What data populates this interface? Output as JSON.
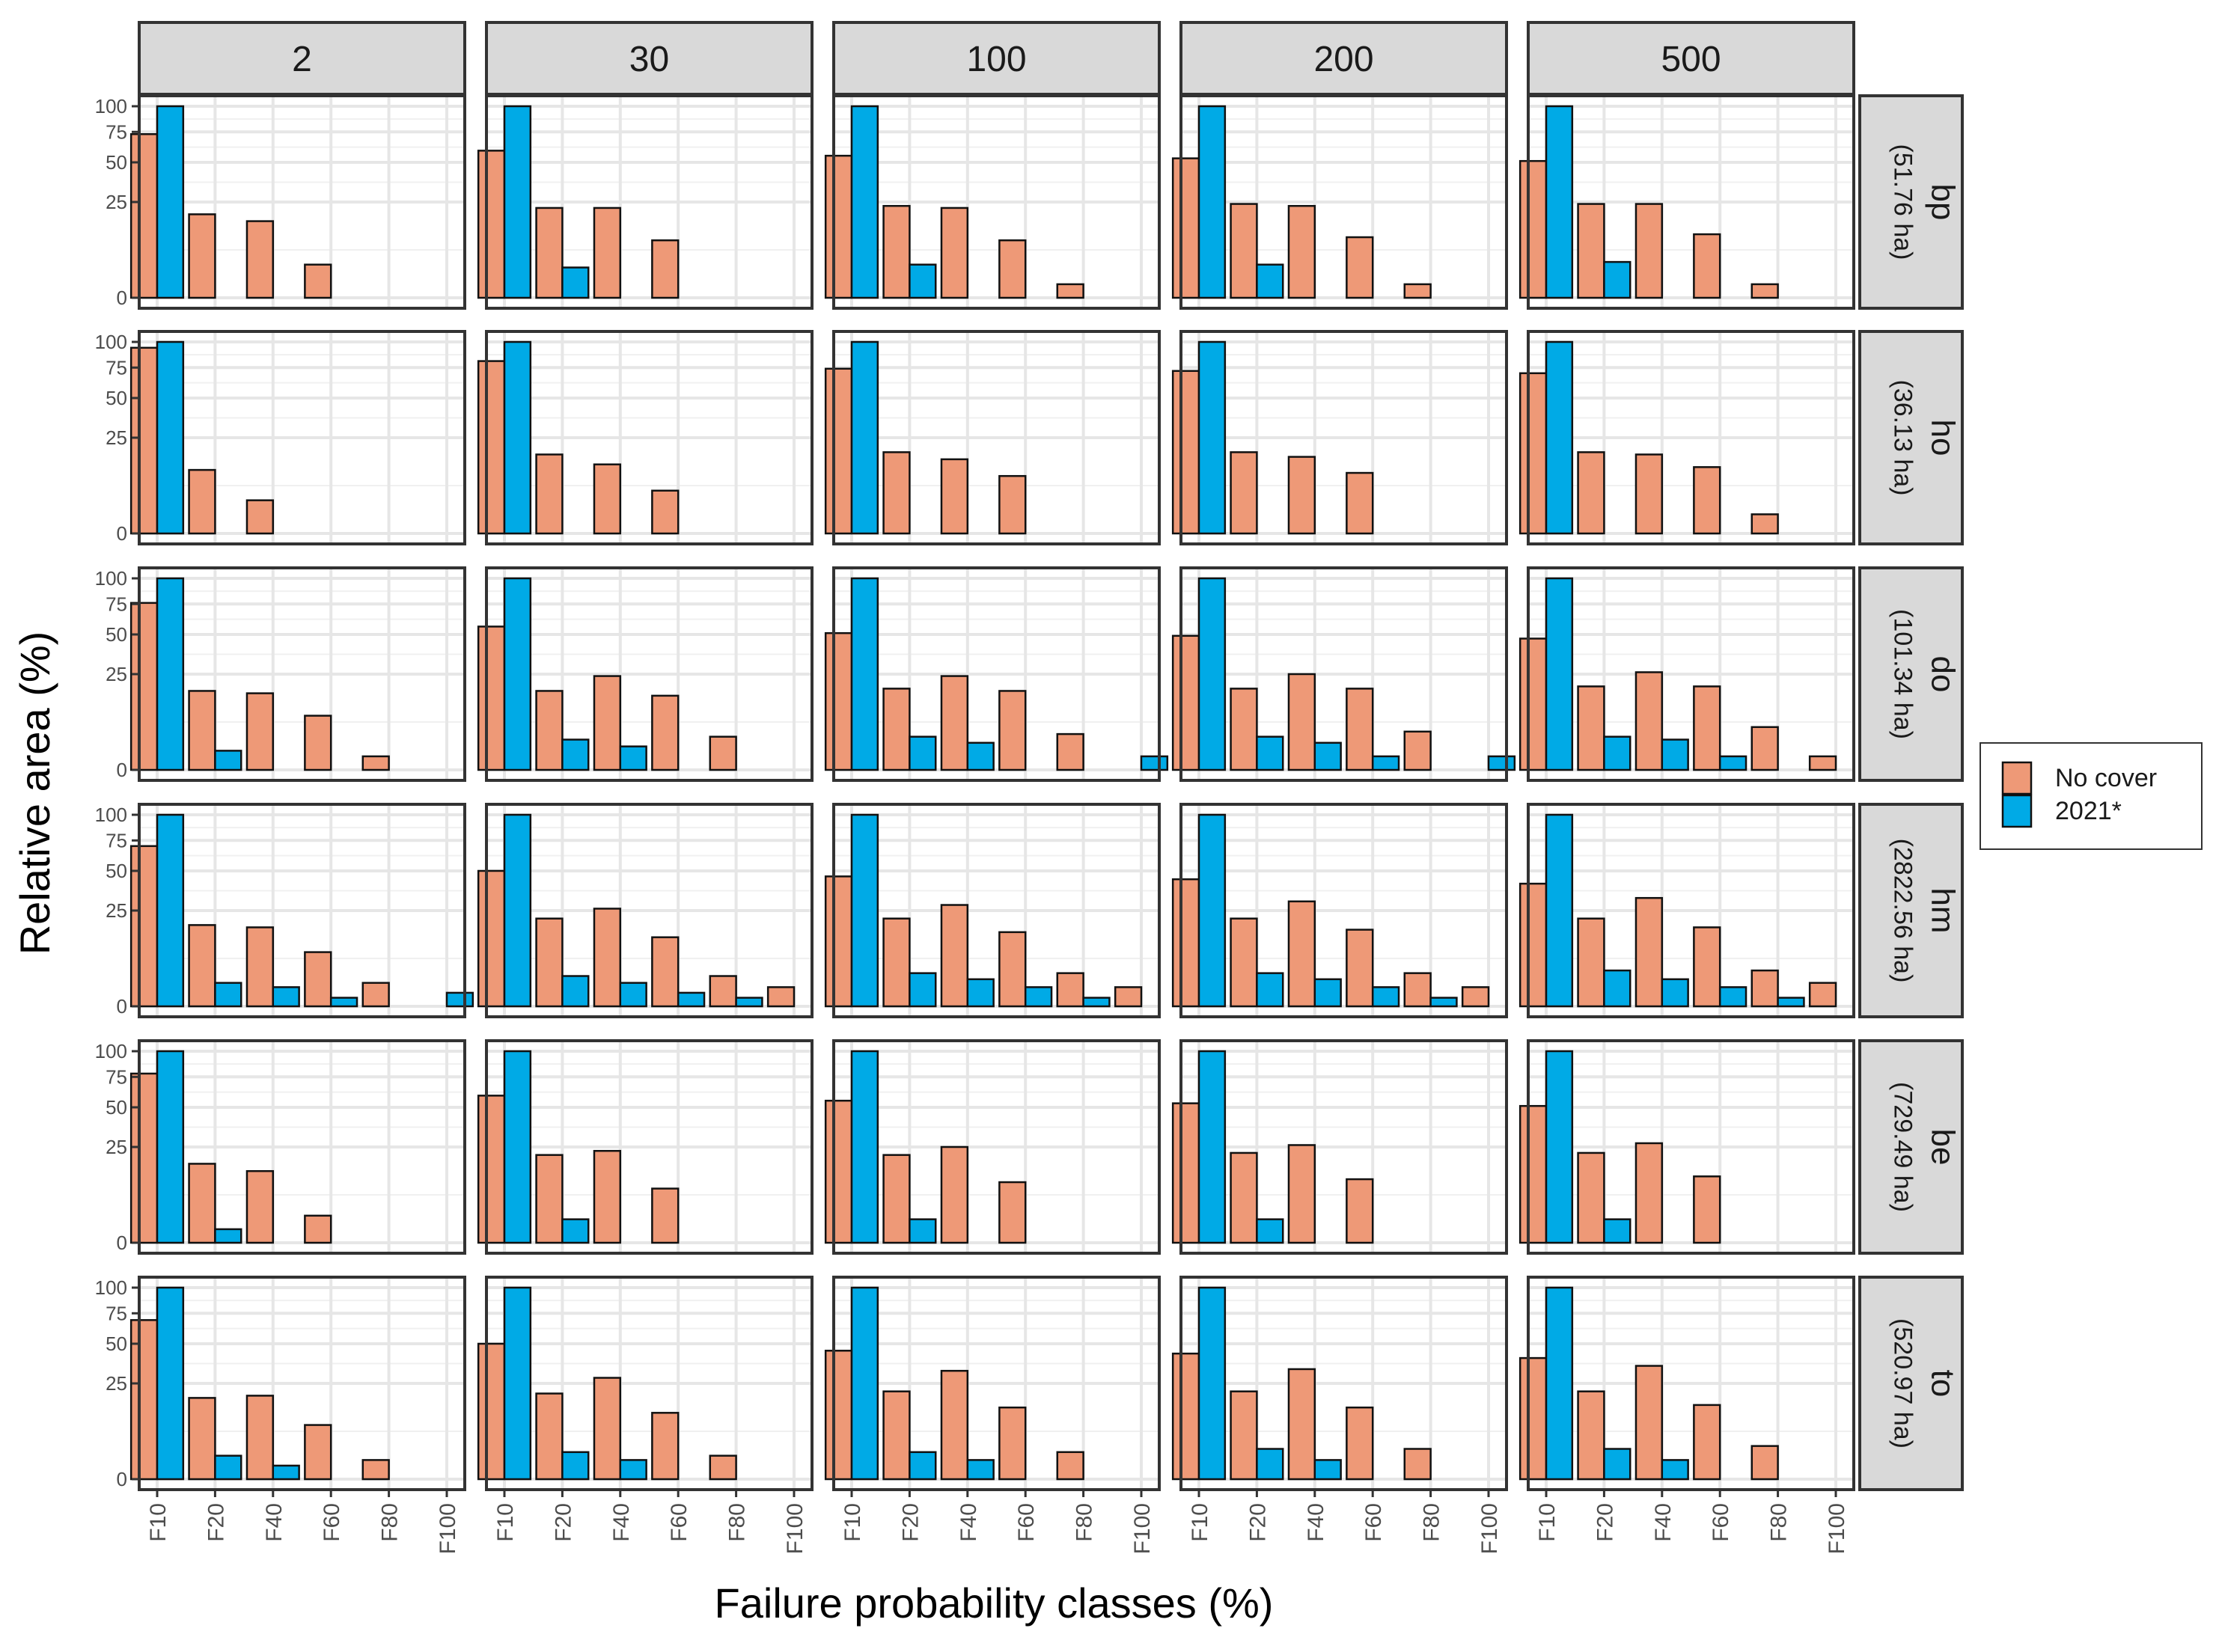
{
  "chart_data": {
    "type": "bar",
    "facet_layout": "grid",
    "xlabel": "Failure probability classes (%)",
    "ylabel": "Relative area (%)",
    "categories": [
      "F10",
      "F20",
      "F40",
      "F60",
      "F80",
      "F100"
    ],
    "y_scale": "square-root",
    "yticks": [
      0,
      25,
      50,
      75,
      100
    ],
    "ylim": [
      0,
      100
    ],
    "columns": [
      "2",
      "30",
      "100",
      "200",
      "500"
    ],
    "rows": [
      {
        "code": "bp",
        "area": "(51.76 ha)"
      },
      {
        "code": "ho",
        "area": "(36.13 ha)"
      },
      {
        "code": "do",
        "area": "(101.34 ha)"
      },
      {
        "code": "hm",
        "area": "(2822.56 ha)"
      },
      {
        "code": "be",
        "area": "(729.49 ha)"
      },
      {
        "code": "to",
        "area": "(520.97 ha)"
      }
    ],
    "legend": {
      "position": "right",
      "entries": [
        {
          "name": "No cover",
          "color": "#ee9977"
        },
        {
          "name": "2021*",
          "color": "#00aae6"
        }
      ]
    },
    "panels": {
      "bp": {
        "2": {
          "No cover": [
            73,
            19,
            16,
            3,
            0,
            0
          ],
          "2021*": [
            100,
            0,
            0,
            0,
            0,
            0
          ]
        },
        "30": {
          "No cover": [
            59,
            22,
            22,
            9,
            0,
            0
          ],
          "2021*": [
            100,
            2.5,
            0,
            0,
            0,
            0
          ]
        },
        "100": {
          "No cover": [
            55,
            23,
            22,
            9,
            0.5,
            0
          ],
          "2021*": [
            100,
            3,
            0,
            0,
            0,
            0
          ]
        },
        "200": {
          "No cover": [
            53,
            24,
            23,
            10,
            0.5,
            0
          ],
          "2021*": [
            100,
            3,
            0,
            0,
            0,
            0
          ]
        },
        "500": {
          "No cover": [
            51,
            24,
            24,
            11,
            0.5,
            0
          ],
          "2021*": [
            100,
            3.5,
            0,
            0,
            0,
            0
          ]
        }
      },
      "ho": {
        "2": {
          "No cover": [
            94,
            11,
            3,
            0,
            0,
            0
          ],
          "2021*": [
            100,
            0,
            0,
            0,
            0,
            0
          ]
        },
        "30": {
          "No cover": [
            81,
            17,
            13,
            5,
            0,
            0
          ],
          "2021*": [
            100,
            0,
            0,
            0,
            0,
            0
          ]
        },
        "100": {
          "No cover": [
            74,
            18,
            15,
            9,
            0,
            0
          ],
          "2021*": [
            100,
            0,
            0,
            0,
            0,
            0
          ]
        },
        "200": {
          "No cover": [
            72,
            18,
            16,
            10,
            0,
            0
          ],
          "2021*": [
            100,
            0,
            0,
            0,
            0,
            0
          ]
        },
        "500": {
          "No cover": [
            70,
            18,
            17,
            12,
            1,
            0
          ],
          "2021*": [
            100,
            0,
            0,
            0,
            0,
            0
          ]
        }
      },
      "do": {
        "2": {
          "No cover": [
            76,
            17,
            16,
            8,
            0.5,
            0
          ],
          "2021*": [
            100,
            1,
            0,
            0,
            0,
            0
          ]
        },
        "30": {
          "No cover": [
            56,
            17,
            24,
            15,
            3,
            0
          ],
          "2021*": [
            100,
            2.5,
            1.5,
            0,
            0,
            0
          ]
        },
        "100": {
          "No cover": [
            51,
            18,
            24,
            17,
            3.5,
            0
          ],
          "2021*": [
            100,
            3,
            2,
            0,
            0,
            0.5
          ]
        },
        "200": {
          "No cover": [
            49,
            18,
            25,
            18,
            4,
            0
          ],
          "2021*": [
            100,
            3,
            2,
            0.5,
            0,
            0.5
          ]
        },
        "500": {
          "No cover": [
            47,
            19,
            26,
            19,
            5,
            0.5
          ],
          "2021*": [
            100,
            3,
            2.5,
            0.5,
            0,
            0
          ]
        }
      },
      "hm": {
        "2": {
          "No cover": [
            70,
            18,
            17,
            8,
            1.5,
            0
          ],
          "2021*": [
            100,
            1.5,
            1,
            0.2,
            0,
            0.5
          ]
        },
        "30": {
          "No cover": [
            50,
            21,
            26,
            13,
            2.5,
            1
          ],
          "2021*": [
            100,
            2.5,
            1.5,
            0.5,
            0.2,
            0
          ]
        },
        "100": {
          "No cover": [
            46,
            21,
            28,
            15,
            3,
            1
          ],
          "2021*": [
            100,
            3,
            2,
            1,
            0.2,
            0
          ]
        },
        "200": {
          "No cover": [
            44,
            21,
            30,
            16,
            3,
            1
          ],
          "2021*": [
            100,
            3,
            2,
            1,
            0.2,
            0
          ]
        },
        "500": {
          "No cover": [
            41,
            21,
            32,
            17,
            3.5,
            1.5
          ],
          "2021*": [
            100,
            3.5,
            2,
            1,
            0.2,
            0
          ]
        }
      },
      "be": {
        "2": {
          "No cover": [
            78,
            17,
            14,
            2,
            0,
            0
          ],
          "2021*": [
            100,
            0.5,
            0,
            0,
            0,
            0
          ]
        },
        "30": {
          "No cover": [
            59,
            21,
            23,
            8,
            0,
            0
          ],
          "2021*": [
            100,
            1.5,
            0,
            0,
            0,
            0
          ]
        },
        "100": {
          "No cover": [
            55,
            21,
            25,
            10,
            0,
            0
          ],
          "2021*": [
            100,
            1.5,
            0,
            0,
            0,
            0
          ]
        },
        "200": {
          "No cover": [
            53,
            22,
            26,
            11,
            0,
            0
          ],
          "2021*": [
            100,
            1.5,
            0,
            0,
            0,
            0
          ]
        },
        "500": {
          "No cover": [
            51,
            22,
            27,
            12,
            0,
            0
          ],
          "2021*": [
            100,
            1.5,
            0,
            0,
            0,
            0
          ]
        }
      },
      "to": {
        "2": {
          "No cover": [
            69,
            18,
            19,
            8,
            1,
            0
          ],
          "2021*": [
            100,
            1.5,
            0.5,
            0,
            0,
            0
          ]
        },
        "30": {
          "No cover": [
            50,
            20,
            28,
            12,
            1.5,
            0
          ],
          "2021*": [
            100,
            2,
            1,
            0,
            0,
            0
          ]
        },
        "100": {
          "No cover": [
            45,
            21,
            32,
            14,
            2,
            0
          ],
          "2021*": [
            100,
            2,
            1,
            0,
            0,
            0
          ]
        },
        "200": {
          "No cover": [
            43,
            21,
            33,
            14,
            2.5,
            0
          ],
          "2021*": [
            100,
            2.5,
            1,
            0,
            0,
            0
          ]
        },
        "500": {
          "No cover": [
            40,
            21,
            35,
            15,
            3,
            0
          ],
          "2021*": [
            100,
            2.5,
            1,
            0,
            0,
            0
          ]
        }
      }
    }
  }
}
